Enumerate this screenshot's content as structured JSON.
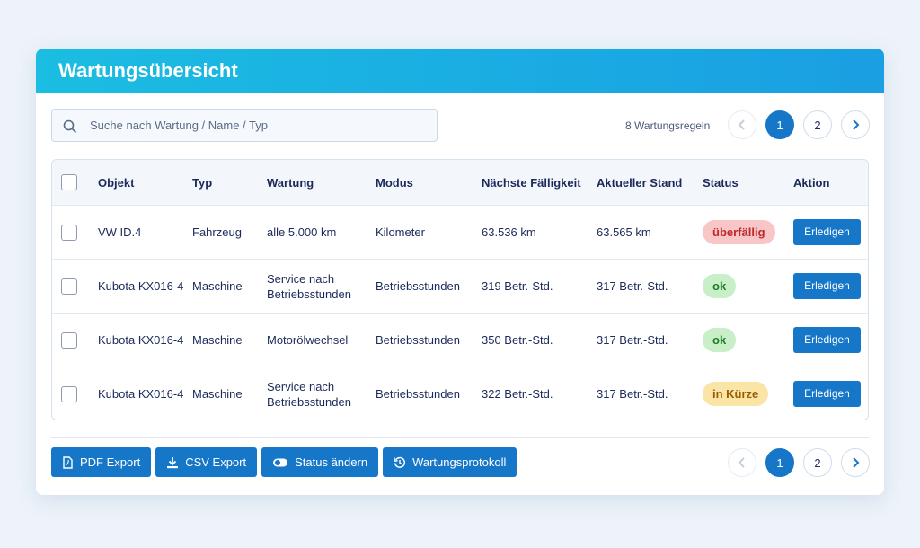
{
  "header": {
    "title": "Wartungsübersicht"
  },
  "search": {
    "placeholder": "Suche nach Wartung / Name / Typ"
  },
  "count": "8 Wartungsregeln",
  "pagination": {
    "pages": [
      "1",
      "2"
    ],
    "current": 0
  },
  "table": {
    "columns": [
      "Objekt",
      "Typ",
      "Wartung",
      "Modus",
      "Nächste Fälligkeit",
      "Aktueller Stand",
      "Status",
      "Aktion"
    ],
    "rows": [
      {
        "cells": [
          "VW ID.4",
          "Fahrzeug",
          "alle 5.000 km",
          "Kilometer",
          "63.536 km",
          "63.565 km"
        ],
        "status": "überfällig",
        "status_color": {
          "bg": "#f8c6c6",
          "fg": "#c0262a"
        },
        "action": "Erledigen"
      },
      {
        "cells": [
          "Kubota KX016-4",
          "Maschine",
          "Service nach Betriebsstunden",
          "Betriebsstunden",
          "319 Betr.-Std.",
          "317 Betr.-Std."
        ],
        "status": "ok",
        "status_color": {
          "bg": "#c8efc8",
          "fg": "#1f7a2a"
        },
        "action": "Erledigen"
      },
      {
        "cells": [
          "Kubota KX016-4",
          "Maschine",
          "Motorölwechsel",
          "Betriebsstunden",
          "350 Betr.-Std.",
          "317 Betr.-Std."
        ],
        "status": "ok",
        "status_color": {
          "bg": "#c8efc8",
          "fg": "#1f7a2a"
        },
        "action": "Erledigen"
      },
      {
        "cells": [
          "Kubota KX016-4",
          "Maschine",
          "Service nach Betriebsstunden",
          "Betriebsstunden",
          "322 Betr.-Std.",
          "317 Betr.-Std."
        ],
        "status": "in Kürze",
        "status_color": {
          "bg": "#fbe5a6",
          "fg": "#9a5a00"
        },
        "action": "Erledigen"
      }
    ]
  },
  "footer": {
    "buttons": [
      "PDF Export",
      "CSV Export",
      "Status ändern",
      "Wartungsprotokoll"
    ]
  }
}
